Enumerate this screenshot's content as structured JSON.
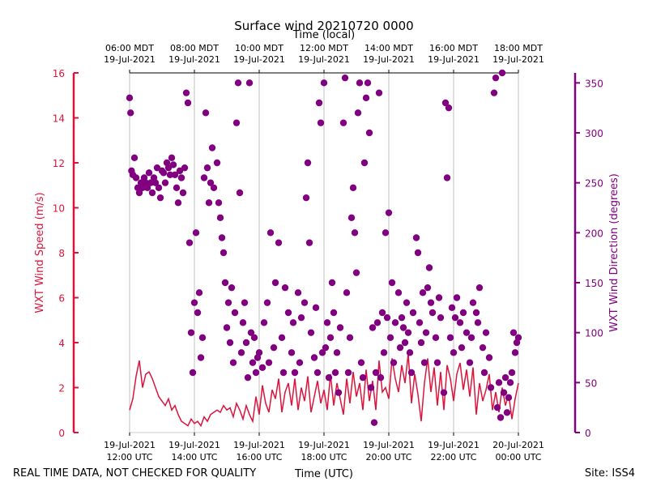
{
  "chart_data": {
    "type": "line",
    "title": "Surface wind 20210720 0000",
    "xlabel": "Time (UTC)",
    "x2label": "Time (local)",
    "ylabel": "WXT Wind Speed (m/s)",
    "y2label": "WXT Wind Direction (degrees)",
    "footer_left": "REAL TIME DATA, NOT CHECKED FOR QUALITY",
    "footer_right": "Site: ISS4",
    "xlim": [
      12,
      24
    ],
    "xticks": [
      {
        "value": 12,
        "label": "19-Jul-2021\n12:00 UTC"
      },
      {
        "value": 14,
        "label": "19-Jul-2021\n14:00 UTC"
      },
      {
        "value": 16,
        "label": "19-Jul-2021\n16:00 UTC"
      },
      {
        "value": 18,
        "label": "19-Jul-2021\n18:00 UTC"
      },
      {
        "value": 20,
        "label": "19-Jul-2021\n20:00 UTC"
      },
      {
        "value": 22,
        "label": "19-Jul-2021\n22:00 UTC"
      },
      {
        "value": 24,
        "label": "20-Jul-2021\n00:00 UTC"
      }
    ],
    "x2ticks": [
      {
        "value": 12,
        "label": "06:00 MDT\n19-Jul-2021"
      },
      {
        "value": 14,
        "label": "08:00 MDT\n19-Jul-2021"
      },
      {
        "value": 16,
        "label": "10:00 MDT\n19-Jul-2021"
      },
      {
        "value": 18,
        "label": "12:00 MDT\n19-Jul-2021"
      },
      {
        "value": 20,
        "label": "14:00 MDT\n19-Jul-2021"
      },
      {
        "value": 22,
        "label": "16:00 MDT\n19-Jul-2021"
      },
      {
        "value": 24,
        "label": "18:00 MDT\n19-Jul-2021"
      }
    ],
    "ylim": [
      0,
      16
    ],
    "yticks": [
      0,
      2,
      4,
      6,
      8,
      10,
      12,
      14,
      16
    ],
    "y2lim": [
      0,
      360
    ],
    "y2ticks": [
      0,
      50,
      100,
      150,
      200,
      250,
      300,
      350
    ],
    "grid": true,
    "series": [
      {
        "type": "line",
        "color": "#dc143c",
        "x": [
          12.0,
          12.1,
          12.2,
          12.3,
          12.4,
          12.5,
          12.6,
          12.7,
          12.8,
          12.9,
          13.0,
          13.1,
          13.2,
          13.3,
          13.4,
          13.5,
          13.6,
          13.7,
          13.8,
          13.9,
          14.0,
          14.1,
          14.2,
          14.3,
          14.4,
          14.5,
          14.6,
          14.7,
          14.8,
          14.9,
          15.0,
          15.1,
          15.2,
          15.3,
          15.4,
          15.5,
          15.6,
          15.7,
          15.8,
          15.9,
          16.0,
          16.1,
          16.2,
          16.3,
          16.4,
          16.5,
          16.6,
          16.7,
          16.8,
          16.9,
          17.0,
          17.1,
          17.2,
          17.3,
          17.4,
          17.5,
          17.6,
          17.7,
          17.8,
          17.9,
          18.0,
          18.1,
          18.2,
          18.3,
          18.4,
          18.5,
          18.6,
          18.7,
          18.8,
          18.9,
          19.0,
          19.1,
          19.2,
          19.3,
          19.4,
          19.5,
          19.6,
          19.7,
          19.8,
          19.9,
          20.0,
          20.1,
          20.2,
          20.3,
          20.4,
          20.5,
          20.6,
          20.7,
          20.8,
          20.9,
          21.0,
          21.1,
          21.2,
          21.3,
          21.4,
          21.5,
          21.6,
          21.7,
          21.8,
          21.9,
          22.0,
          22.1,
          22.2,
          22.3,
          22.4,
          22.5,
          22.6,
          22.7,
          22.8,
          22.9,
          23.0,
          23.1,
          23.2,
          23.3,
          23.4,
          23.5,
          23.6,
          23.7,
          23.8,
          23.9,
          24.0
        ],
        "values": [
          1.0,
          1.5,
          2.5,
          3.2,
          2.0,
          2.6,
          2.7,
          2.4,
          2.0,
          1.6,
          1.4,
          1.2,
          1.5,
          1.0,
          1.2,
          0.8,
          0.5,
          0.4,
          0.3,
          0.6,
          0.4,
          0.5,
          0.3,
          0.7,
          0.5,
          0.8,
          0.9,
          1.0,
          0.9,
          1.2,
          1.0,
          1.1,
          0.7,
          1.3,
          1.0,
          0.6,
          1.2,
          0.8,
          0.5,
          1.6,
          0.8,
          2.1,
          1.3,
          0.9,
          1.9,
          1.5,
          2.4,
          0.9,
          1.8,
          2.2,
          1.2,
          2.4,
          1.0,
          2.0,
          1.4,
          2.5,
          0.9,
          1.6,
          2.3,
          1.3,
          1.9,
          1.0,
          2.6,
          1.2,
          2.2,
          1.5,
          0.8,
          2.4,
          1.3,
          2.7,
          1.6,
          2.2,
          1.0,
          2.8,
          1.4,
          2.3,
          1.0,
          3.2,
          1.8,
          2.0,
          1.5,
          3.3,
          2.4,
          1.8,
          3.0,
          2.2,
          3.5,
          1.3,
          2.6,
          1.7,
          0.5,
          2.2,
          3.3,
          1.8,
          2.9,
          1.2,
          2.7,
          1.0,
          3.0,
          2.4,
          1.4,
          2.6,
          3.1,
          1.9,
          2.8,
          1.6,
          2.9,
          0.8,
          2.2,
          1.4,
          1.9,
          2.6,
          1.0,
          1.8,
          0.9,
          2.0,
          1.2,
          1.7,
          0.6,
          1.5,
          2.2
        ]
      },
      {
        "type": "scatter",
        "color": "#800080",
        "axis": "y2",
        "x": [
          12.0,
          12.03,
          12.06,
          12.1,
          12.15,
          12.2,
          12.25,
          12.3,
          12.35,
          12.4,
          12.45,
          12.5,
          12.55,
          12.6,
          12.65,
          12.7,
          12.75,
          12.8,
          12.85,
          12.9,
          12.95,
          13.0,
          13.05,
          13.1,
          13.15,
          13.2,
          13.25,
          13.3,
          13.35,
          13.4,
          13.45,
          13.5,
          13.55,
          13.6,
          13.65,
          13.7,
          13.75,
          13.8,
          13.85,
          13.9,
          13.95,
          14.0,
          14.05,
          14.1,
          14.15,
          14.2,
          14.25,
          14.3,
          14.35,
          14.4,
          14.45,
          14.5,
          14.55,
          14.6,
          14.7,
          14.75,
          14.8,
          14.85,
          14.9,
          14.95,
          15.0,
          15.05,
          15.1,
          15.15,
          15.2,
          15.25,
          15.3,
          15.35,
          15.4,
          15.45,
          15.5,
          15.55,
          15.6,
          15.65,
          15.7,
          15.75,
          15.8,
          15.85,
          15.9,
          15.95,
          16.0,
          16.1,
          16.15,
          16.25,
          16.3,
          16.35,
          16.45,
          16.5,
          16.6,
          16.7,
          16.75,
          16.8,
          16.9,
          17.0,
          17.05,
          17.1,
          17.2,
          17.25,
          17.3,
          17.4,
          17.45,
          17.5,
          17.55,
          17.6,
          17.7,
          17.75,
          17.8,
          17.85,
          17.9,
          17.95,
          18.0,
          18.05,
          18.1,
          18.15,
          18.2,
          18.25,
          18.3,
          18.35,
          18.4,
          18.45,
          18.5,
          18.6,
          18.65,
          18.7,
          18.75,
          18.8,
          18.85,
          18.9,
          18.95,
          19.0,
          19.05,
          19.1,
          19.15,
          19.2,
          19.25,
          19.3,
          19.35,
          19.4,
          19.45,
          19.5,
          19.55,
          19.6,
          19.65,
          19.7,
          19.75,
          19.8,
          19.85,
          19.9,
          19.95,
          20.0,
          20.05,
          20.1,
          20.15,
          20.2,
          20.3,
          20.35,
          20.4,
          20.45,
          20.5,
          20.55,
          20.6,
          20.65,
          20.7,
          20.75,
          20.85,
          20.9,
          20.95,
          21.0,
          21.05,
          21.1,
          21.15,
          21.2,
          21.25,
          21.3,
          21.35,
          21.45,
          21.5,
          21.55,
          21.6,
          21.7,
          21.75,
          21.8,
          21.85,
          21.9,
          21.95,
          22.0,
          22.05,
          22.1,
          22.2,
          22.25,
          22.3,
          22.4,
          22.5,
          22.55,
          22.6,
          22.7,
          22.75,
          22.8,
          22.9,
          22.95,
          23.0,
          23.1,
          23.15,
          23.25,
          23.3,
          23.35,
          23.4,
          23.45,
          23.5,
          23.55,
          23.6,
          23.65,
          23.7,
          23.75,
          23.8,
          23.85,
          23.9,
          23.95,
          24.0
        ],
        "values": [
          335,
          320,
          262,
          258,
          275,
          255,
          245,
          240,
          250,
          245,
          255,
          250,
          245,
          260,
          250,
          240,
          255,
          250,
          265,
          245,
          235,
          262,
          260,
          250,
          270,
          265,
          258,
          275,
          268,
          258,
          245,
          230,
          262,
          255,
          240,
          265,
          340,
          330,
          190,
          100,
          60,
          130,
          200,
          120,
          140,
          75,
          95,
          255,
          320,
          265,
          230,
          250,
          285,
          245,
          270,
          230,
          215,
          195,
          180,
          150,
          105,
          130,
          90,
          145,
          70,
          120,
          310,
          350,
          240,
          80,
          110,
          130,
          90,
          55,
          350,
          100,
          70,
          95,
          60,
          75,
          80,
          65,
          110,
          130,
          70,
          200,
          85,
          150,
          190,
          95,
          60,
          145,
          120,
          80,
          110,
          60,
          140,
          70,
          115,
          130,
          235,
          270,
          190,
          100,
          75,
          125,
          60,
          330,
          310,
          80,
          350,
          85,
          110,
          55,
          95,
          150,
          120,
          60,
          80,
          40,
          105,
          310,
          355,
          140,
          60,
          95,
          215,
          245,
          200,
          160,
          320,
          350,
          70,
          55,
          270,
          335,
          350,
          300,
          45,
          105,
          10,
          60,
          110,
          340,
          55,
          120,
          80,
          200,
          115,
          220,
          95,
          150,
          70,
          110,
          140,
          85,
          115,
          105,
          90,
          130,
          100,
          80,
          60,
          120,
          195,
          180,
          110,
          90,
          140,
          70,
          100,
          145,
          165,
          130,
          120,
          95,
          70,
          135,
          115,
          40,
          330,
          255,
          325,
          95,
          125,
          80,
          115,
          135,
          110,
          85,
          120,
          100,
          70,
          95,
          130,
          120,
          110,
          145,
          85,
          60,
          100,
          75,
          45,
          340,
          355,
          25,
          50,
          15,
          360,
          40,
          55,
          20,
          35,
          50,
          60,
          100,
          80,
          90,
          95
        ]
      }
    ]
  }
}
